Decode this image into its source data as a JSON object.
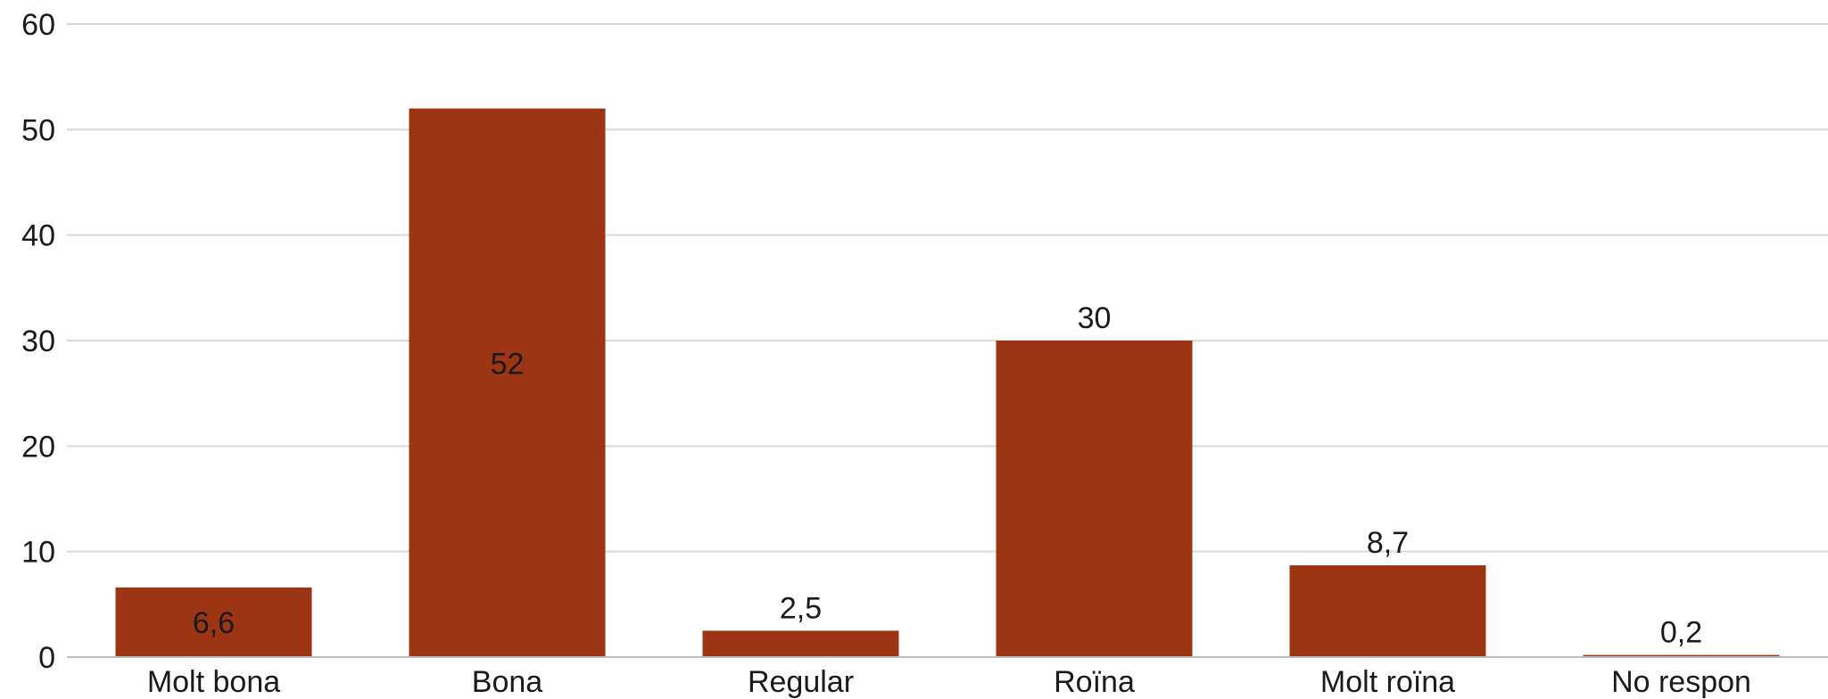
{
  "chart_data": {
    "type": "bar",
    "categories": [
      "Molt bona",
      "Bona",
      "Regular",
      "Roïna",
      "Molt roïna",
      "No respon"
    ],
    "values": [
      6.6,
      52,
      2.5,
      30,
      8.7,
      0.2
    ],
    "value_labels": [
      "6,6",
      "52",
      "2,5",
      "30",
      "8,7",
      "0,2"
    ],
    "title": "",
    "xlabel": "",
    "ylabel": "",
    "ylim": [
      0,
      60
    ],
    "yticks": [
      0,
      10,
      20,
      30,
      40,
      50,
      60
    ],
    "grid": true,
    "legend": "none",
    "colors": {
      "bar": "#9C3513",
      "grid": "#d9d9d9",
      "axis": "#bfbfbf",
      "text": "#1a1a1a"
    }
  }
}
